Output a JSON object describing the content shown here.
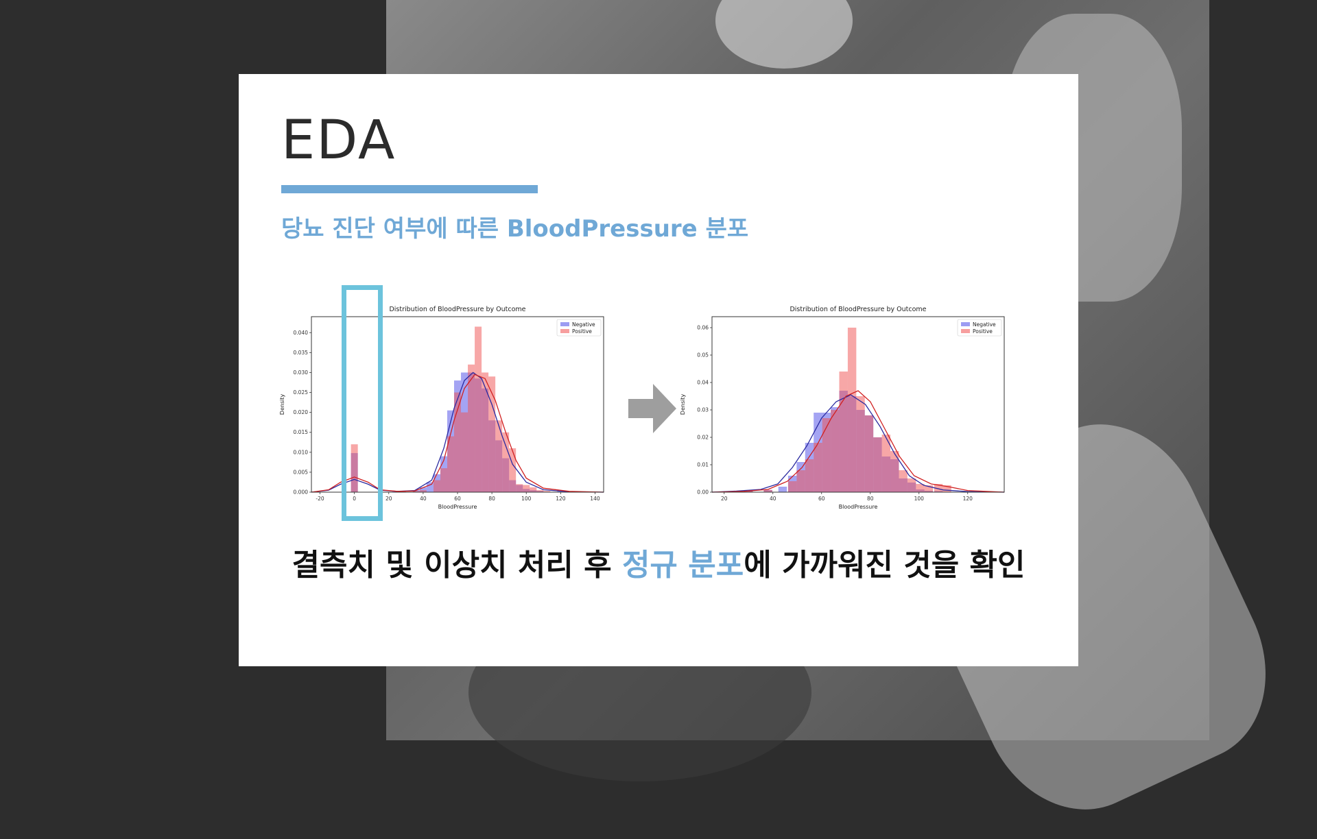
{
  "slide": {
    "title": "EDA",
    "subtitle": "당뇨 진단 여부에 따른 BloodPressure 분포",
    "caption_before": "결측치 및 이상치 처리 후 ",
    "caption_accent": "정규 분포",
    "caption_after": "에 가까워진 것을 확인"
  },
  "colors": {
    "accent": "#6fa8d6",
    "highlight": "#6cc3dc",
    "negative": "#4a4ae8",
    "positive": "#f05050"
  },
  "chart_data": [
    {
      "type": "bar",
      "title": "Distribution of BloodPressure by Outcome",
      "xlabel": "BloodPressure",
      "ylabel": "Density",
      "xlim": [
        -25,
        145
      ],
      "ylim": [
        0,
        0.044
      ],
      "xticks": [
        -20,
        0,
        20,
        40,
        60,
        80,
        100,
        120,
        140
      ],
      "yticks": [
        0.0,
        0.005,
        0.01,
        0.015,
        0.02,
        0.025,
        0.03,
        0.035,
        0.04
      ],
      "ytick_labels": [
        "0.000",
        "0.005",
        "0.010",
        "0.015",
        "0.020",
        "0.025",
        "0.030",
        "0.035",
        "0.040"
      ],
      "legend_position": "top-right",
      "legend": [
        "Negative",
        "Positive"
      ],
      "bin_width": 4,
      "series": [
        {
          "name": "Negative",
          "bins": [
            [
              0,
              0.0098
            ],
            [
              24,
              0.0002
            ],
            [
              28,
              0.0003
            ],
            [
              36,
              0.0005
            ],
            [
              40,
              0.0012
            ],
            [
              44,
              0.0025
            ],
            [
              48,
              0.0045
            ],
            [
              52,
              0.009
            ],
            [
              56,
              0.0205
            ],
            [
              60,
              0.028
            ],
            [
              64,
              0.03
            ],
            [
              68,
              0.03
            ],
            [
              72,
              0.0285
            ],
            [
              76,
              0.026
            ],
            [
              80,
              0.018
            ],
            [
              84,
              0.013
            ],
            [
              88,
              0.0085
            ],
            [
              92,
              0.003
            ],
            [
              96,
              0.0018
            ],
            [
              100,
              0.0008
            ],
            [
              104,
              0.0005
            ],
            [
              108,
              0.0003
            ],
            [
              120,
              0.0002
            ]
          ],
          "kde": [
            [
              -25,
              0.0
            ],
            [
              -15,
              0.0005
            ],
            [
              -8,
              0.002
            ],
            [
              0,
              0.0032
            ],
            [
              8,
              0.002
            ],
            [
              15,
              0.0005
            ],
            [
              25,
              0.0002
            ],
            [
              35,
              0.0004
            ],
            [
              45,
              0.003
            ],
            [
              52,
              0.011
            ],
            [
              58,
              0.021
            ],
            [
              64,
              0.028
            ],
            [
              69,
              0.03
            ],
            [
              74,
              0.0285
            ],
            [
              80,
              0.022
            ],
            [
              86,
              0.014
            ],
            [
              92,
              0.007
            ],
            [
              100,
              0.0025
            ],
            [
              110,
              0.0006
            ],
            [
              125,
              0.0001
            ],
            [
              145,
              0.0
            ]
          ]
        },
        {
          "name": "Positive",
          "bins": [
            [
              0,
              0.012
            ],
            [
              28,
              0.0002
            ],
            [
              36,
              0.0003
            ],
            [
              40,
              0.0005
            ],
            [
              48,
              0.003
            ],
            [
              52,
              0.006
            ],
            [
              56,
              0.014
            ],
            [
              60,
              0.025
            ],
            [
              64,
              0.02
            ],
            [
              68,
              0.032
            ],
            [
              72,
              0.0415
            ],
            [
              76,
              0.03
            ],
            [
              80,
              0.029
            ],
            [
              84,
              0.018
            ],
            [
              88,
              0.015
            ],
            [
              92,
              0.011
            ],
            [
              96,
              0.002
            ],
            [
              100,
              0.0018
            ],
            [
              104,
              0.0012
            ],
            [
              108,
              0.0005
            ],
            [
              112,
              0.0003
            ]
          ],
          "kde": [
            [
              -25,
              0.0
            ],
            [
              -15,
              0.0006
            ],
            [
              -8,
              0.0025
            ],
            [
              0,
              0.0038
            ],
            [
              8,
              0.0025
            ],
            [
              15,
              0.0006
            ],
            [
              25,
              0.0002
            ],
            [
              35,
              0.0003
            ],
            [
              45,
              0.002
            ],
            [
              52,
              0.008
            ],
            [
              58,
              0.018
            ],
            [
              64,
              0.026
            ],
            [
              70,
              0.0295
            ],
            [
              76,
              0.0285
            ],
            [
              82,
              0.023
            ],
            [
              88,
              0.015
            ],
            [
              94,
              0.008
            ],
            [
              100,
              0.0035
            ],
            [
              110,
              0.001
            ],
            [
              125,
              0.0002
            ],
            [
              145,
              0.0
            ]
          ]
        }
      ]
    },
    {
      "type": "bar",
      "title": "Distribution of BloodPressure by Outcome",
      "xlabel": "BloodPressure",
      "ylabel": "Density",
      "xlim": [
        15,
        135
      ],
      "ylim": [
        0,
        0.064
      ],
      "xticks": [
        20,
        40,
        60,
        80,
        100,
        120
      ],
      "yticks": [
        0.0,
        0.01,
        0.02,
        0.03,
        0.04,
        0.05,
        0.06
      ],
      "ytick_labels": [
        "0.00",
        "0.01",
        "0.02",
        "0.03",
        "0.04",
        "0.05",
        "0.06"
      ],
      "legend_position": "top-right",
      "legend": [
        "Negative",
        "Positive"
      ],
      "bin_width": 3.5,
      "series": [
        {
          "name": "Negative",
          "bins": [
            [
              24,
              0.0004
            ],
            [
              30,
              0.0005
            ],
            [
              38,
              0.0008
            ],
            [
              44,
              0.002
            ],
            [
              48,
              0.006
            ],
            [
              51.5,
              0.011
            ],
            [
              55,
              0.018
            ],
            [
              58.5,
              0.029
            ],
            [
              62,
              0.029
            ],
            [
              65.5,
              0.031
            ],
            [
              69,
              0.037
            ],
            [
              72.5,
              0.035
            ],
            [
              76,
              0.03
            ],
            [
              79.5,
              0.028
            ],
            [
              83,
              0.02
            ],
            [
              86.5,
              0.013
            ],
            [
              90,
              0.012
            ],
            [
              93.5,
              0.005
            ],
            [
              97,
              0.0035
            ],
            [
              100.5,
              0.001
            ],
            [
              104,
              0.0005
            ],
            [
              108,
              0.0004
            ]
          ],
          "kde": [
            [
              15,
              0.0
            ],
            [
              25,
              0.0004
            ],
            [
              35,
              0.001
            ],
            [
              42,
              0.003
            ],
            [
              48,
              0.009
            ],
            [
              54,
              0.017
            ],
            [
              60,
              0.027
            ],
            [
              66,
              0.033
            ],
            [
              72,
              0.0355
            ],
            [
              78,
              0.032
            ],
            [
              84,
              0.024
            ],
            [
              90,
              0.014
            ],
            [
              96,
              0.006
            ],
            [
              102,
              0.0025
            ],
            [
              110,
              0.0008
            ],
            [
              120,
              0.0002
            ],
            [
              135,
              0.0
            ]
          ]
        },
        {
          "name": "Positive",
          "bins": [
            [
              30,
              0.0005
            ],
            [
              38,
              0.0008
            ],
            [
              48,
              0.004
            ],
            [
              51.5,
              0.008
            ],
            [
              55,
              0.012
            ],
            [
              58.5,
              0.018
            ],
            [
              62,
              0.027
            ],
            [
              65.5,
              0.03
            ],
            [
              69,
              0.044
            ],
            [
              72.5,
              0.06
            ],
            [
              76,
              0.035
            ],
            [
              79.5,
              0.028
            ],
            [
              83,
              0.02
            ],
            [
              86.5,
              0.021
            ],
            [
              90,
              0.015
            ],
            [
              93.5,
              0.008
            ],
            [
              97,
              0.005
            ],
            [
              100.5,
              0.003
            ],
            [
              104,
              0.0025
            ],
            [
              108,
              0.003
            ],
            [
              111.5,
              0.0025
            ]
          ],
          "kde": [
            [
              15,
              0.0
            ],
            [
              28,
              0.0003
            ],
            [
              38,
              0.001
            ],
            [
              46,
              0.004
            ],
            [
              52,
              0.009
            ],
            [
              58,
              0.017
            ],
            [
              64,
              0.027
            ],
            [
              70,
              0.035
            ],
            [
              75,
              0.037
            ],
            [
              80,
              0.033
            ],
            [
              86,
              0.023
            ],
            [
              92,
              0.013
            ],
            [
              98,
              0.006
            ],
            [
              105,
              0.003
            ],
            [
              112,
              0.002
            ],
            [
              120,
              0.0006
            ],
            [
              135,
              0.0
            ]
          ]
        }
      ]
    }
  ]
}
